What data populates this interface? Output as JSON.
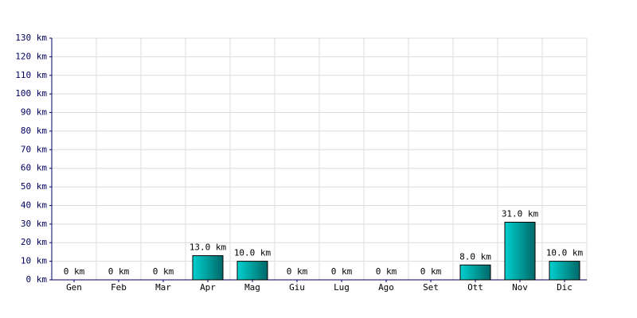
{
  "chart_data": {
    "type": "bar",
    "categories": [
      "Gen",
      "Feb",
      "Mar",
      "Apr",
      "Mag",
      "Giu",
      "Lug",
      "Ago",
      "Set",
      "Ott",
      "Nov",
      "Dic"
    ],
    "values": [
      0,
      0,
      0,
      13,
      10,
      0,
      0,
      0,
      0,
      8,
      31,
      10
    ],
    "value_labels": [
      "0 km",
      "0 km",
      "0 km",
      "13.0 km",
      "10.0 km",
      "0 km",
      "0 km",
      "0 km",
      "0 km",
      "8.0 km",
      "31.0 km",
      "10.0 km"
    ],
    "color": "#00d0d0",
    "ylim": [
      0,
      130
    ],
    "yticks": [
      {
        "value": 0,
        "label": "0 km"
      },
      {
        "value": 10,
        "label": "10 km"
      },
      {
        "value": 20,
        "label": "20 km"
      },
      {
        "value": 30,
        "label": "30 km"
      },
      {
        "value": 40,
        "label": "40 km"
      },
      {
        "value": 50,
        "label": "50 km"
      },
      {
        "value": 60,
        "label": "60 km"
      },
      {
        "value": 70,
        "label": "70 km"
      },
      {
        "value": 80,
        "label": "80 km"
      },
      {
        "value": 90,
        "label": "90 km"
      },
      {
        "value": 100,
        "label": "100 km"
      },
      {
        "value": 110,
        "label": "110 km"
      },
      {
        "value": 120,
        "label": "120 km"
      },
      {
        "value": 130,
        "label": "130 km"
      }
    ],
    "grid": true
  }
}
